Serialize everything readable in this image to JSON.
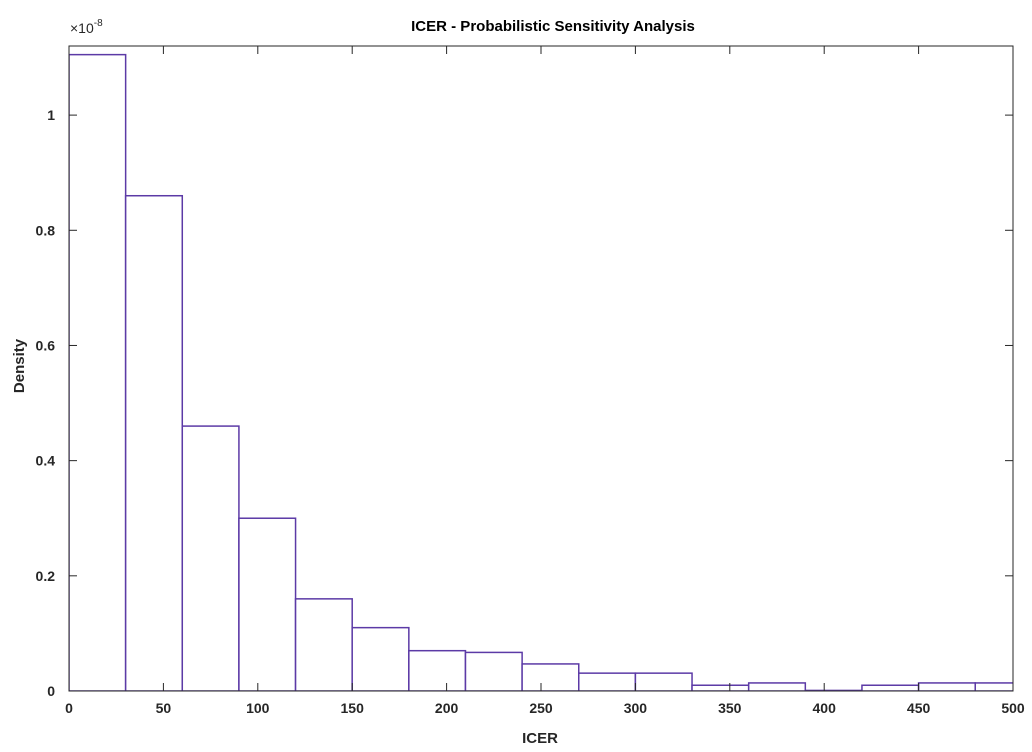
{
  "chart_data": {
    "type": "bar",
    "title": "ICER - Probabilistic Sensitivity Analysis",
    "xlabel": "ICER",
    "ylabel": "Density",
    "exponent_label": "×10",
    "exponent_power": "-8",
    "xlim": [
      0,
      500
    ],
    "ylim": [
      0,
      1.12
    ],
    "xticks": [
      0,
      50,
      100,
      150,
      200,
      250,
      300,
      350,
      400,
      450,
      500
    ],
    "yticks": [
      0,
      0.2,
      0.4,
      0.6,
      0.8,
      1
    ],
    "xtick_labels": [
      "0",
      "50",
      "100",
      "150",
      "200",
      "250",
      "300",
      "350",
      "400",
      "450",
      "500"
    ],
    "ytick_labels": [
      "0",
      "0.2",
      "0.4",
      "0.6",
      "0.8",
      "1"
    ],
    "bin_width": 30,
    "bins": [
      {
        "x0": 0,
        "x1": 30,
        "value": 1.105
      },
      {
        "x0": 30,
        "x1": 60,
        "value": 0.86
      },
      {
        "x0": 60,
        "x1": 90,
        "value": 0.46
      },
      {
        "x0": 90,
        "x1": 120,
        "value": 0.3
      },
      {
        "x0": 120,
        "x1": 150,
        "value": 0.16
      },
      {
        "x0": 150,
        "x1": 180,
        "value": 0.11
      },
      {
        "x0": 180,
        "x1": 210,
        "value": 0.07
      },
      {
        "x0": 210,
        "x1": 240,
        "value": 0.067
      },
      {
        "x0": 240,
        "x1": 270,
        "value": 0.047
      },
      {
        "x0": 270,
        "x1": 300,
        "value": 0.031
      },
      {
        "x0": 300,
        "x1": 330,
        "value": 0.031
      },
      {
        "x0": 330,
        "x1": 360,
        "value": 0.01
      },
      {
        "x0": 360,
        "x1": 390,
        "value": 0.014
      },
      {
        "x0": 390,
        "x1": 420,
        "value": 0.001
      },
      {
        "x0": 420,
        "x1": 450,
        "value": 0.01
      },
      {
        "x0": 450,
        "x1": 480,
        "value": 0.014
      },
      {
        "x0": 480,
        "x1": 510,
        "value": 0.014
      }
    ],
    "bar_color": "#5c3aa6",
    "grid": false,
    "legend": "none"
  }
}
